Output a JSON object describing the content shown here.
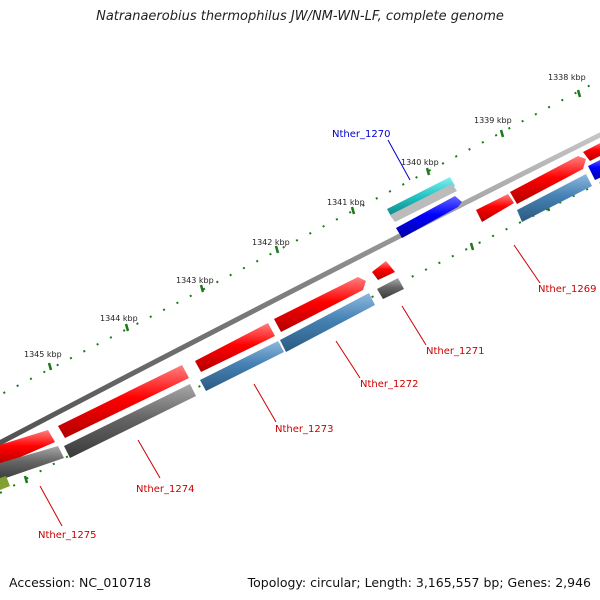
{
  "title": "Natranaerobius thermophilus JW/NM-WN-LF, complete genome",
  "footer": {
    "accession": "Accession: NC_010718",
    "summary": "Topology: circular; Length: 3,165,557 bp; Genes: 2,946"
  },
  "ticks": [
    "1338 kbp",
    "1339 kbp",
    "1340 kbp",
    "1341 kbp",
    "1342 kbp",
    "1343 kbp",
    "1344 kbp",
    "1345 kbp"
  ],
  "genes": {
    "g1269": "Nther_1269",
    "g1270": "Nther_1270",
    "g1271": "Nther_1271",
    "g1272": "Nther_1272",
    "g1273": "Nther_1273",
    "g1274": "Nther_1274",
    "g1275": "Nther_1275"
  },
  "colors": {
    "cds_forward": "#ff0000",
    "cds_reverse_steelblue": "#4682b4",
    "cds_reverse_gray": "#666666",
    "rna_blue": "#0000ff",
    "rna_cyan": "#20c0c0",
    "backbone": "#808080",
    "ticks": "#1a7a1a",
    "label_blue": "#0000cc",
    "label_red": "#cc0000"
  }
}
